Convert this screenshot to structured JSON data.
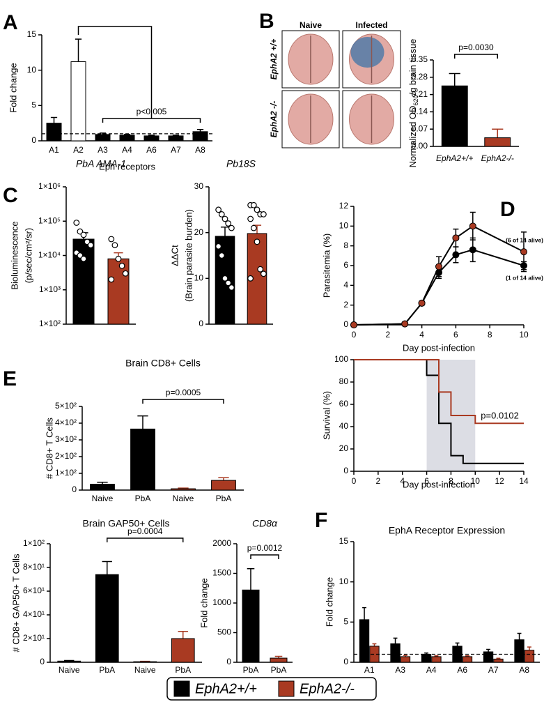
{
  "brain_images": {
    "columns": [
      "Naive",
      "Infected"
    ],
    "rows": [
      "EphA2 +/+",
      "EphA2 -/-"
    ]
  },
  "chart_data": [
    {
      "panel": "A",
      "type": "bar",
      "categories": [
        "A1",
        "A2",
        "A3",
        "A4",
        "A6",
        "A7",
        "A8"
      ],
      "values": [
        2.5,
        11.2,
        0.9,
        0.8,
        0.7,
        0.7,
        1.3
      ],
      "errors": [
        0.8,
        3.2,
        0.2,
        0.1,
        0.1,
        0.1,
        0.3
      ],
      "colors": [
        "#000000",
        "#ffffff",
        "#000000",
        "#000000",
        "#000000",
        "#000000",
        "#000000"
      ],
      "ylim": [
        0,
        15
      ],
      "yticks": [
        0,
        5,
        10,
        15
      ],
      "ylabel": "Fold change",
      "xlabel": "Eph receptors",
      "reference_line": 1,
      "annotation": "p<0.005"
    },
    {
      "panel": "B",
      "type": "bar",
      "categories": [
        "EphA2+/+",
        "EphA2-/-"
      ],
      "values": [
        0.245,
        0.035
      ],
      "errors": [
        0.05,
        0.035
      ],
      "colors": [
        "#000000",
        "#a93a22"
      ],
      "ylim": [
        0,
        0.35
      ],
      "yticks": [
        {
          "value": 0,
          "label": "0.00"
        },
        0.07,
        0.14,
        0.21,
        0.28,
        0.35
      ],
      "ylabel_parts": [
        "Normalized OD",
        "620",
        "/g brain tissue"
      ],
      "annotation": "p=0.0030"
    },
    {
      "panel": "C",
      "type": "bar",
      "scale": "log",
      "title": "PbA AMA-1",
      "values": [
        30000,
        8000
      ],
      "errors": [
        16000,
        4000
      ],
      "colors": [
        "#000000",
        "#a93a22"
      ],
      "points": [
        [
          90000,
          50000,
          40000,
          25000,
          20000,
          12000,
          10000,
          8000
        ],
        [
          30000,
          20000,
          8000,
          5000,
          3000,
          2000
        ]
      ],
      "ylim": [
        100,
        1000000
      ],
      "yticks": [
        {
          "value": 100,
          "label": "1×10²"
        },
        {
          "value": 1000,
          "label": "1×10³"
        },
        {
          "value": 10000,
          "label": "1×10⁴"
        },
        {
          "value": 100000,
          "label": "1×10⁵"
        },
        {
          "value": 1000000,
          "label": "1×10⁶"
        }
      ],
      "ylabel": [
        "Bioluminescence",
        "(p/sec/cm²/sr)"
      ]
    },
    {
      "type": "bar",
      "title": "Pb18S",
      "values": [
        19.2,
        19.8
      ],
      "errors": [
        2,
        1.8
      ],
      "colors": [
        "#000000",
        "#a93a22"
      ],
      "points": [
        [
          25,
          24,
          23,
          22,
          21,
          17,
          15,
          10,
          9,
          8
        ],
        [
          26,
          26,
          25,
          24,
          24,
          23,
          21,
          18,
          12,
          11,
          10
        ]
      ],
      "ylim": [
        0,
        30
      ],
      "yticks": [
        0,
        10,
        20,
        30
      ],
      "ylabel": [
        "ΔΔCt",
        "(Brain parasite burden)"
      ]
    },
    {
      "panel": "D",
      "type": "line",
      "x": [
        0,
        3,
        4,
        5,
        6,
        7,
        10
      ],
      "series": [
        {
          "color": "#000000",
          "values": [
            0,
            0.1,
            2.2,
            5.3,
            7.1,
            7.6,
            6.0
          ],
          "errors": [
            0,
            0,
            0.2,
            0.6,
            0.8,
            1.2,
            0.4
          ]
        },
        {
          "color": "#a93a22",
          "values": [
            0,
            0.1,
            2.2,
            5.9,
            8.8,
            10.0,
            7.4
          ],
          "errors": [
            0,
            0,
            0.2,
            1.0,
            0.9,
            1.4,
            2.0
          ]
        }
      ],
      "xlim": [
        0,
        10
      ],
      "xticks": [
        0,
        2,
        4,
        6,
        8,
        10
      ],
      "ylim": [
        0,
        12
      ],
      "yticks": [
        0,
        2,
        4,
        6,
        8,
        10,
        12
      ],
      "ylabel": "Parasitemia (%)",
      "xlabel": "Day post-infection",
      "annotations": [
        "(6 of 14 alive)",
        "(1 of 14 alive)"
      ]
    },
    {
      "type": "step",
      "x": [
        0,
        6,
        7,
        8,
        9,
        10,
        14
      ],
      "series": [
        {
          "color": "#000000",
          "values": [
            100,
            86,
            43,
            14,
            7,
            7,
            7
          ]
        },
        {
          "color": "#a93a22",
          "values": [
            100,
            100,
            71,
            50,
            50,
            43,
            43
          ]
        }
      ],
      "shade": [
        6,
        10
      ],
      "xlim": [
        0,
        14
      ],
      "xticks": [
        0,
        2,
        4,
        6,
        8,
        10,
        12,
        14
      ],
      "ylim": [
        0,
        100
      ],
      "yticks": [
        0,
        20,
        40,
        60,
        80,
        100
      ],
      "ylabel": "Survival (%)",
      "xlabel": "Day post-infection",
      "annotation": "p=0.0102"
    },
    {
      "panel": "E",
      "type": "bar",
      "title": "Brain CD8+ Cells",
      "categories": [
        "Naive",
        "PbA",
        "Naive",
        "PbA"
      ],
      "values": [
        35,
        365,
        8,
        58
      ],
      "errors": [
        12,
        78,
        4,
        16
      ],
      "colors": [
        "#000000",
        "#000000",
        "#a93a22",
        "#a93a22"
      ],
      "ylim": [
        0,
        500
      ],
      "yticks": [
        0,
        {
          "value": 100,
          "label": "1×10²"
        },
        {
          "value": 200,
          "label": "2×10²"
        },
        {
          "value": 300,
          "label": "3×10²"
        },
        {
          "value": 400,
          "label": "4×10²"
        },
        {
          "value": 500,
          "label": "5×10²"
        }
      ],
      "ylabel": "# CD8+ T Cells",
      "annotation": "p=0.0005"
    },
    {
      "type": "bar",
      "title": "Brain GAP50+ Cells",
      "categories": [
        "Naive",
        "PbA",
        "Naive",
        "PbA"
      ],
      "values": [
        1,
        74,
        0.5,
        20
      ],
      "errors": [
        0.5,
        11,
        0.3,
        6
      ],
      "colors": [
        "#000000",
        "#000000",
        "#a93a22",
        "#a93a22"
      ],
      "ylim": [
        0,
        100
      ],
      "yticks": [
        0,
        {
          "value": 20,
          "label": "2×10¹"
        },
        {
          "value": 40,
          "label": "4×10¹"
        },
        {
          "value": 60,
          "label": "6×10¹"
        },
        {
          "value": 80,
          "label": "8×10¹"
        },
        {
          "value": 100,
          "label": "1×10²"
        }
      ],
      "ylabel": "# CD8+ GAP50+ T Cells",
      "annotation": "p=0.0004"
    },
    {
      "type": "bar",
      "title": "CD8α",
      "categories": [
        "PbA",
        "PbA"
      ],
      "values": [
        1220,
        70
      ],
      "errors": [
        360,
        30
      ],
      "colors": [
        "#000000",
        "#a93a22"
      ],
      "ylim": [
        0,
        2000
      ],
      "yticks": [
        0,
        500,
        1000,
        1500,
        2000
      ],
      "ylabel": "Fold change",
      "annotation": "p=0.0012"
    },
    {
      "panel": "F",
      "type": "bar",
      "title": "EphA Receptor Expression",
      "categories": [
        "A1",
        "A3",
        "A4",
        "A6",
        "A7",
        "A8"
      ],
      "series": [
        {
          "name": "EphA2+/+",
          "color": "#000000",
          "values": [
            5.3,
            2.3,
            1.0,
            2.0,
            1.3,
            2.8
          ],
          "errors": [
            1.5,
            0.7,
            0.15,
            0.4,
            0.3,
            0.8
          ]
        },
        {
          "name": "EphA2-/-",
          "color": "#a93a22",
          "values": [
            2.0,
            0.7,
            0.7,
            0.7,
            0.4,
            1.5
          ],
          "errors": [
            0.3,
            0.15,
            0.1,
            0.1,
            0.1,
            0.4
          ]
        }
      ],
      "ylim": [
        0,
        15
      ],
      "yticks": [
        0,
        5,
        10,
        15
      ],
      "ylabel": "Fold change",
      "reference_line": 1
    }
  ]
}
